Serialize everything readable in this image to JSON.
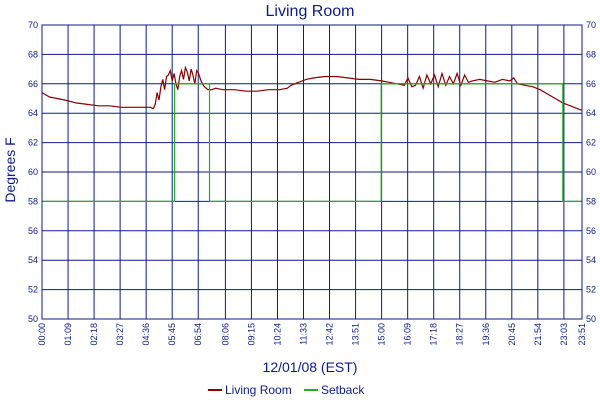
{
  "chart_data": {
    "type": "line",
    "title": "Living Room",
    "xlabel": "12/01/08 (EST)",
    "ylabel": "Degrees F",
    "ylim": [
      50,
      70
    ],
    "yticks": [
      50,
      52,
      54,
      56,
      58,
      60,
      62,
      64,
      66,
      68,
      70
    ],
    "xlim_minutes": [
      0,
      1431
    ],
    "xtick_labels": [
      "00:00",
      "01:09",
      "02:18",
      "03:27",
      "04:36",
      "05:45",
      "06:54",
      "08:06",
      "09:15",
      "10:24",
      "11:33",
      "12:42",
      "13:51",
      "15:00",
      "16:09",
      "17:18",
      "18:27",
      "19:36",
      "20:45",
      "21:54",
      "23:03",
      "23:51"
    ],
    "grid": true,
    "legend_position": "bottom",
    "series": [
      {
        "name": "Living Room",
        "color": "#8b0000",
        "x_time": [
          "00:00",
          "00:20",
          "00:40",
          "01:00",
          "01:30",
          "02:00",
          "02:30",
          "03:00",
          "03:30",
          "04:00",
          "04:30",
          "04:48",
          "04:55",
          "05:00",
          "05:05",
          "05:10",
          "05:15",
          "05:20",
          "05:25",
          "05:30",
          "05:35",
          "05:40",
          "05:45",
          "05:50",
          "05:55",
          "06:00",
          "06:05",
          "06:10",
          "06:15",
          "06:20",
          "06:25",
          "06:30",
          "06:35",
          "06:40",
          "06:45",
          "06:50",
          "06:55",
          "07:00",
          "07:05",
          "07:10",
          "07:15",
          "07:20",
          "07:25",
          "07:30",
          "07:40",
          "08:00",
          "08:30",
          "09:00",
          "09:30",
          "10:00",
          "10:30",
          "10:50",
          "11:00",
          "11:20",
          "11:40",
          "12:00",
          "12:30",
          "13:00",
          "13:30",
          "14:00",
          "14:30",
          "15:00",
          "15:20",
          "15:40",
          "16:00",
          "16:10",
          "16:20",
          "16:30",
          "16:40",
          "16:50",
          "17:00",
          "17:10",
          "17:20",
          "17:30",
          "17:40",
          "17:50",
          "18:00",
          "18:10",
          "18:20",
          "18:30",
          "18:40",
          "18:50",
          "19:00",
          "19:20",
          "19:40",
          "20:00",
          "20:20",
          "20:40",
          "20:50",
          "21:00",
          "21:20",
          "21:40",
          "22:00",
          "22:20",
          "22:40",
          "23:00",
          "23:20",
          "23:40",
          "23:51"
        ],
        "values": [
          65.4,
          65.1,
          65.0,
          64.9,
          64.7,
          64.6,
          64.5,
          64.5,
          64.4,
          64.4,
          64.4,
          64.4,
          64.3,
          64.6,
          65.4,
          64.9,
          65.8,
          66.3,
          65.6,
          66.5,
          66.6,
          66.9,
          66.2,
          66.7,
          66.0,
          65.6,
          66.5,
          66.9,
          66.3,
          67.1,
          66.8,
          66.2,
          67.0,
          66.6,
          66.0,
          66.9,
          66.7,
          66.3,
          66.0,
          65.8,
          65.7,
          65.6,
          65.6,
          65.6,
          65.7,
          65.6,
          65.6,
          65.5,
          65.5,
          65.6,
          65.6,
          65.7,
          65.9,
          66.1,
          66.3,
          66.4,
          66.5,
          66.5,
          66.4,
          66.3,
          66.3,
          66.2,
          66.1,
          66.0,
          65.9,
          66.4,
          65.8,
          65.9,
          66.5,
          65.7,
          66.6,
          66.0,
          66.6,
          65.8,
          66.7,
          65.9,
          66.5,
          66.0,
          66.7,
          65.9,
          66.6,
          66.1,
          66.2,
          66.3,
          66.2,
          66.1,
          66.3,
          66.2,
          66.4,
          66.0,
          65.9,
          65.8,
          65.6,
          65.3,
          65.0,
          64.7,
          64.5,
          64.3,
          64.2
        ]
      },
      {
        "name": "Setback",
        "color": "#22b022",
        "x_time": [
          "00:00",
          "05:51",
          "05:51",
          "07:24",
          "07:24",
          "14:59",
          "14:59",
          "23:00",
          "23:00",
          "23:51"
        ],
        "values": [
          58,
          58,
          66,
          66,
          58,
          58,
          66,
          66,
          58,
          58
        ]
      }
    ]
  }
}
